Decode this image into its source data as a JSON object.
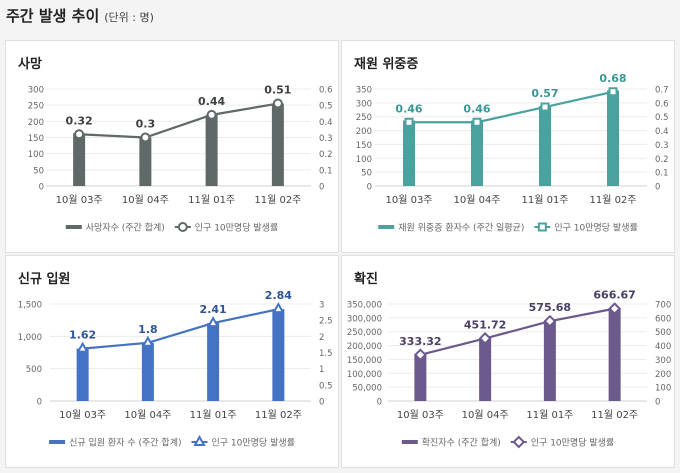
{
  "header": {
    "title": "주간 발생 추이",
    "unit": "(단위 : 명)"
  },
  "chart_data": [
    {
      "type": "bar+line",
      "title": "사망",
      "categories": [
        "10월 03주",
        "10월 04주",
        "11월 01주",
        "11월 02주"
      ],
      "series": [
        {
          "name": "사망자수 (주간 합계)",
          "type": "bar",
          "axis": "left",
          "values": [
            163,
            150,
            220,
            255
          ]
        },
        {
          "name": "인구 10만명당 발생률",
          "type": "line",
          "axis": "right",
          "marker": "circle",
          "values": [
            0.32,
            0.3,
            0.44,
            0.51
          ],
          "labels": [
            "0.32",
            "0.3",
            "0.44",
            "0.51"
          ]
        }
      ],
      "left_ticks": [
        "0",
        "50",
        "100",
        "150",
        "200",
        "250",
        "300"
      ],
      "left_range": [
        0,
        300
      ],
      "right_ticks": [
        "0",
        "0.1",
        "0.2",
        "0.3",
        "0.4",
        "0.5",
        "0.6"
      ],
      "right_range": [
        0,
        0.6
      ],
      "bar_color": "#5f6968",
      "line_color": "#5f6968",
      "label_color": "#404040",
      "legend": "bottom"
    },
    {
      "type": "bar+line",
      "title": "재원 위중증",
      "categories": [
        "10월 03주",
        "10월 04주",
        "11월 01주",
        "11월 02주"
      ],
      "series": [
        {
          "name": "재원 위중증 환자수 (주간 일평균)",
          "type": "bar",
          "axis": "left",
          "values": [
            236,
            236,
            288,
            345
          ]
        },
        {
          "name": "인구 10만명당 발생률",
          "type": "line",
          "axis": "right",
          "marker": "square",
          "values": [
            0.46,
            0.46,
            0.57,
            0.68
          ],
          "labels": [
            "0.46",
            "0.46",
            "0.57",
            "0.68"
          ]
        }
      ],
      "left_ticks": [
        "0",
        "50",
        "100",
        "150",
        "200",
        "250",
        "300",
        "350"
      ],
      "left_range": [
        0,
        350
      ],
      "right_ticks": [
        "0",
        "0.1",
        "0.2",
        "0.3",
        "0.4",
        "0.5",
        "0.6",
        "0.7"
      ],
      "right_range": [
        0,
        0.7
      ],
      "bar_color": "#4aa29f",
      "line_color": "#4aa29f",
      "label_color": "#3a9794",
      "legend": "bottom"
    },
    {
      "type": "bar+line",
      "title": "신규 입원",
      "categories": [
        "10월 03주",
        "10월 04주",
        "11월 01주",
        "11월 02주"
      ],
      "series": [
        {
          "name": "신규 입원 환자 수 (주간 합계)",
          "type": "bar",
          "axis": "left",
          "values": [
            810,
            900,
            1205,
            1420
          ]
        },
        {
          "name": "인구 10만명당 발생률",
          "type": "line",
          "axis": "right",
          "marker": "triangle",
          "values": [
            1.62,
            1.8,
            2.41,
            2.84
          ],
          "labels": [
            "1.62",
            "1.8",
            "2.41",
            "2.84"
          ]
        }
      ],
      "left_ticks": [
        "0",
        "500",
        "1,000",
        "1,500"
      ],
      "left_range": [
        0,
        1500
      ],
      "right_ticks": [
        "0",
        "0.5",
        "1",
        "1.5",
        "2",
        "2.5",
        "3"
      ],
      "right_range": [
        0,
        3
      ],
      "bar_color": "#4472c4",
      "line_color": "#4472c4",
      "label_color": "#2f5597",
      "legend": "bottom"
    },
    {
      "type": "bar+line",
      "title": "확진",
      "categories": [
        "10월 03주",
        "10월 04주",
        "11월 01주",
        "11월 02주"
      ],
      "series": [
        {
          "name": "확진자수 (주간 합계)",
          "type": "bar",
          "axis": "left",
          "values": [
            166000,
            226000,
            287000,
            333000
          ]
        },
        {
          "name": "인구 10만명당 발생률",
          "type": "line",
          "axis": "right",
          "marker": "diamond",
          "values": [
            333.32,
            451.72,
            575.68,
            666.67
          ],
          "labels": [
            "333.32",
            "451.72",
            "575.68",
            "666.67"
          ]
        }
      ],
      "left_ticks": [
        "0",
        "50,000",
        "100,000",
        "150,000",
        "200,000",
        "250,000",
        "300,000",
        "350,000"
      ],
      "left_range": [
        0,
        350000
      ],
      "right_ticks": [
        "0",
        "100",
        "200",
        "300",
        "400",
        "500",
        "600",
        "700"
      ],
      "right_range": [
        0,
        700
      ],
      "bar_color": "#6c5a8c",
      "line_color": "#6c5a8c",
      "label_color": "#4a3f66",
      "legend": "bottom"
    }
  ]
}
